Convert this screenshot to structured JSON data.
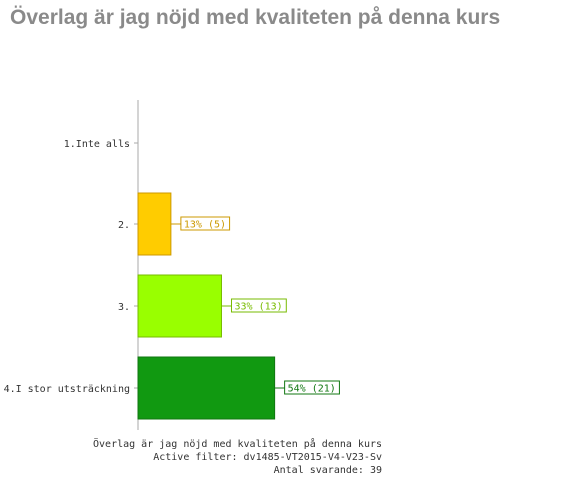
{
  "page": {
    "title": "Överlag är jag nöjd med kvaliteten på denna kurs"
  },
  "chart_data": {
    "type": "bar",
    "orientation": "horizontal",
    "categories": [
      "1.Inte alls",
      "2.",
      "3.",
      "4.I stor utsträckning"
    ],
    "values": [
      0,
      13,
      33,
      54
    ],
    "counts": [
      0,
      5,
      13,
      21
    ],
    "data_labels": [
      "",
      "13% (5)",
      "33% (13)",
      "54% (21)"
    ],
    "colors": [
      "#ffcc00",
      "#ffcc00",
      "#99ff00",
      "#119911"
    ],
    "label_colors": [
      "#cc9900",
      "#cc9900",
      "#77bb00",
      "#117711"
    ],
    "xlim": [
      0,
      100
    ],
    "grid": false,
    "footer": [
      "Överlag är jag nöjd med kvaliteten på denna kurs",
      "Active filter: dv1485-VT2015-V4-V23-Sv",
      "Antal svarande: 39"
    ]
  }
}
